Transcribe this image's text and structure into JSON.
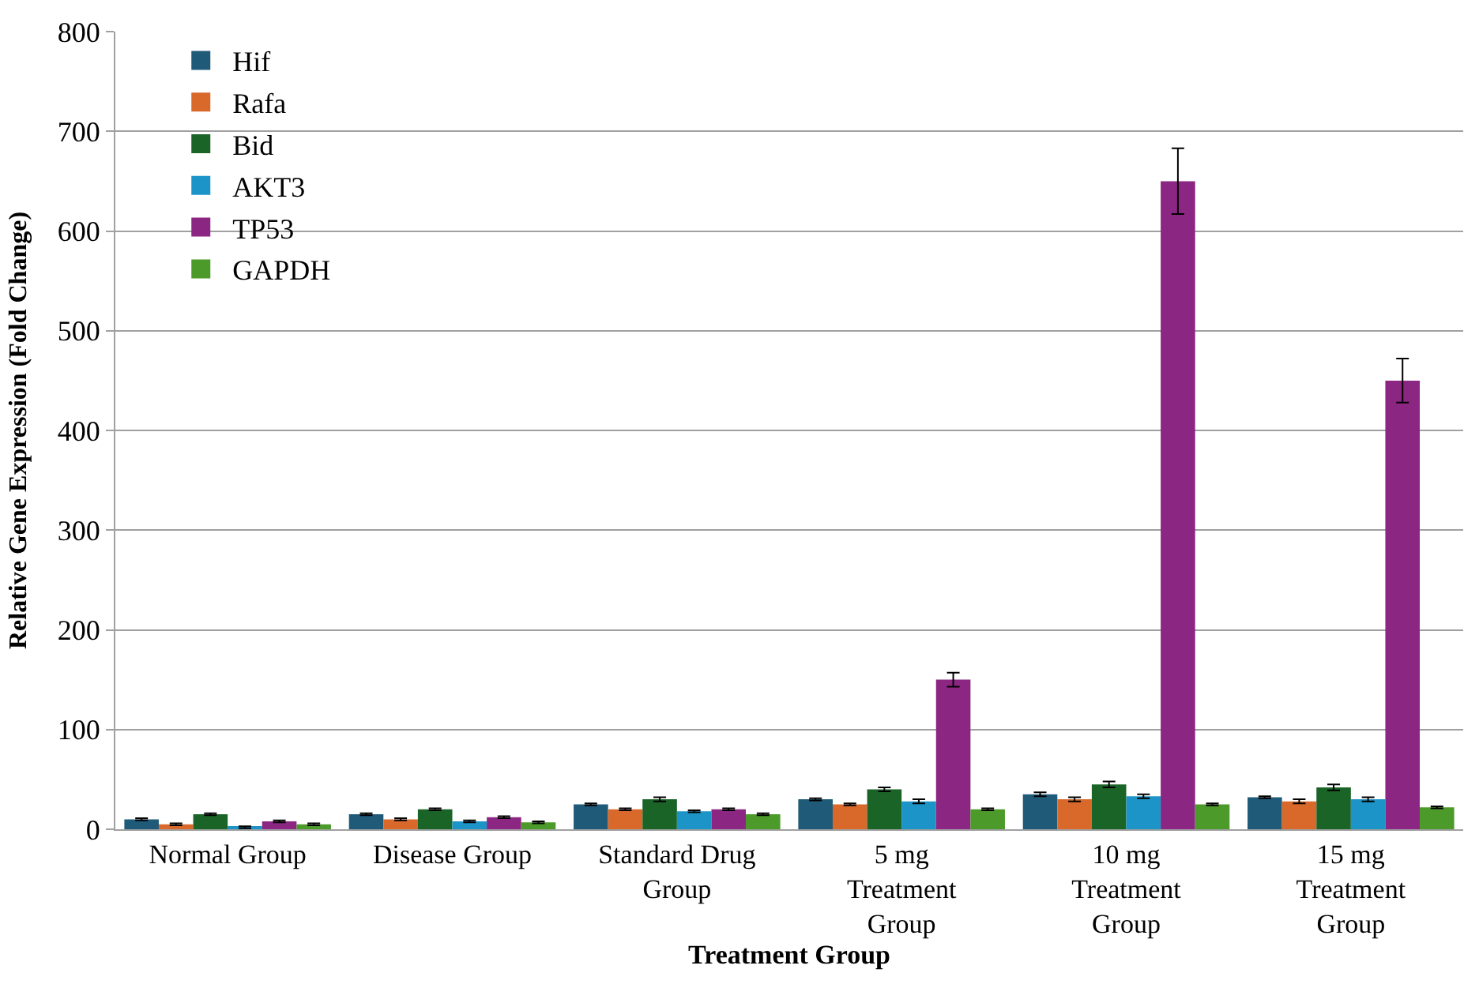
{
  "chart_data": {
    "type": "bar",
    "xlabel": "Treatment Group",
    "ylabel": "Relative Gene Expression (Fold Change)",
    "categories": [
      "Normal Group",
      "Disease Group",
      "Standard Drug Group",
      "5 mg Treatment Group",
      "10 mg Treatment Group",
      "15 mg Treatment Group"
    ],
    "series": [
      {
        "name": "Hif",
        "color": "#1f5b78",
        "values": [
          10,
          15,
          25,
          30,
          35,
          32
        ],
        "errors": [
          1,
          1,
          1,
          1,
          2,
          1
        ]
      },
      {
        "name": "Rafa",
        "color": "#d8692b",
        "values": [
          5,
          10,
          20,
          25,
          30,
          28
        ],
        "errors": [
          1,
          1,
          1,
          1,
          2,
          2
        ]
      },
      {
        "name": "Bid",
        "color": "#1b6428",
        "values": [
          15,
          20,
          30,
          40,
          45,
          42
        ],
        "errors": [
          1,
          1,
          2,
          2,
          3,
          3
        ]
      },
      {
        "name": "AKT3",
        "color": "#1c94c8",
        "values": [
          2,
          8,
          18,
          28,
          33,
          30
        ],
        "errors": [
          1,
          1,
          1,
          2,
          2,
          2
        ]
      },
      {
        "name": "TP53",
        "color": "#8b2683",
        "values": [
          8,
          12,
          20,
          150,
          650,
          450
        ],
        "errors": [
          1,
          1,
          1,
          7,
          33,
          22
        ]
      },
      {
        "name": "GAPDH",
        "color": "#4c9a2a",
        "values": [
          5,
          7,
          15,
          20,
          25,
          22
        ],
        "errors": [
          1,
          1,
          1,
          1,
          1,
          1
        ]
      }
    ],
    "ylim": [
      0,
      800
    ],
    "yticks": [
      0,
      100,
      200,
      300,
      400,
      500,
      600,
      700,
      800
    ],
    "grid": "y",
    "legend": "top left"
  }
}
